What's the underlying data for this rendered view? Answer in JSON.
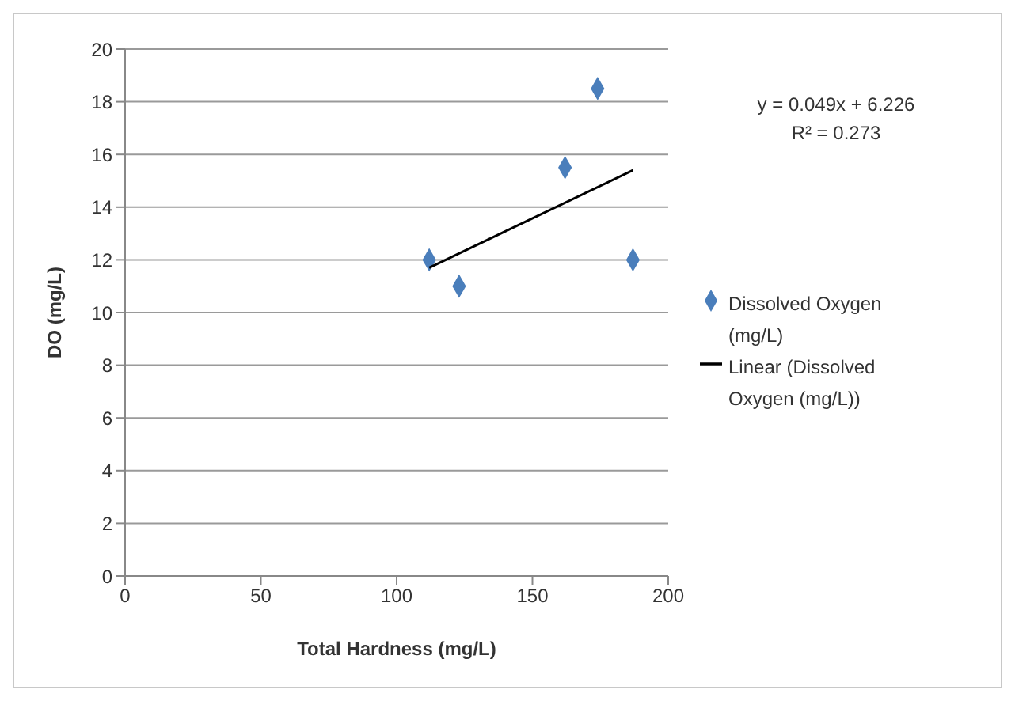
{
  "chart_data": {
    "type": "scatter",
    "xlabel": "Total Hardness  (mg/L)",
    "ylabel": "DO (mg/L)",
    "xlim": [
      0,
      200
    ],
    "xticks": [
      0,
      50,
      100,
      150,
      200
    ],
    "ylim": [
      0,
      20
    ],
    "yticks": [
      0,
      2,
      4,
      6,
      8,
      10,
      12,
      14,
      16,
      18,
      20
    ],
    "grid": "y",
    "legend": "right",
    "annotations": [
      "y = 0.049x + 6.226",
      "R² = 0.273"
    ],
    "series": [
      {
        "name": "Dissolved Oxygen (mg/L)",
        "color": "#4a7ebb",
        "marker": "diamond",
        "x": [
          112,
          123,
          162,
          174,
          187
        ],
        "values": [
          12.0,
          11.0,
          15.5,
          18.5,
          12.0
        ]
      },
      {
        "name": "Linear (Dissolved Oxygen (mg/L))",
        "type": "line",
        "color": "#000000",
        "marker": "none",
        "x": [
          112,
          187
        ],
        "values": [
          11.7,
          15.4
        ]
      }
    ]
  }
}
